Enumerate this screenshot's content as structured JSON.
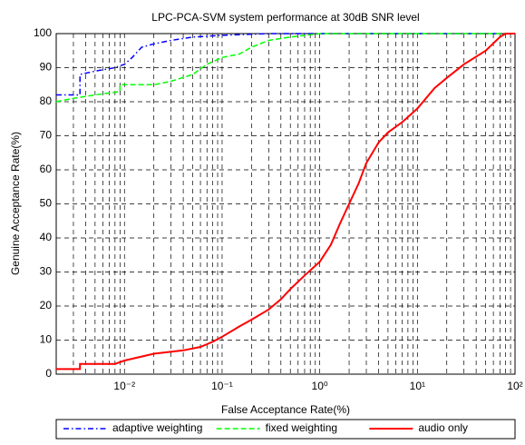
{
  "chart_data": {
    "type": "line",
    "title": "LPC-PCA-SVM system performance at 30dB SNR level",
    "xlabel": "False Acceptance Rate(%)",
    "ylabel": "Genuine Acceptance Rate(%)",
    "xscale": "log",
    "xlim": [
      0.002,
      100
    ],
    "xticks": [
      {
        "value": 0.01,
        "label": "10⁻²"
      },
      {
        "value": 0.1,
        "label": "10⁻¹"
      },
      {
        "value": 1,
        "label": "10⁰"
      },
      {
        "value": 10,
        "label": "10¹"
      },
      {
        "value": 100,
        "label": "10²"
      }
    ],
    "xminor": [
      0.002,
      0.003,
      0.004,
      0.005,
      0.006,
      0.007,
      0.008,
      0.009,
      0.02,
      0.03,
      0.04,
      0.05,
      0.06,
      0.07,
      0.08,
      0.09,
      0.2,
      0.3,
      0.4,
      0.5,
      0.6,
      0.7,
      0.8,
      0.9,
      2,
      3,
      4,
      5,
      6,
      7,
      8,
      9,
      20,
      30,
      40,
      50,
      60,
      70,
      80,
      90
    ],
    "ylim": [
      0,
      100
    ],
    "yticks": [
      0,
      10,
      20,
      30,
      40,
      50,
      60,
      70,
      80,
      90,
      100
    ],
    "grid": true,
    "legend": "bottom",
    "series": [
      {
        "name": "adaptive weighting",
        "color": "#0000ff",
        "dash": "dashdot",
        "x": [
          0.002,
          0.0035,
          0.0035,
          0.005,
          0.008,
          0.01,
          0.012,
          0.015,
          0.02,
          0.03,
          0.05,
          0.1,
          0.3,
          100
        ],
        "values": [
          82,
          82,
          88,
          89,
          90,
          91,
          93,
          96,
          97,
          98,
          99,
          99.5,
          100,
          100
        ]
      },
      {
        "name": "fixed weighting",
        "color": "#00ff00",
        "dash": "dashed",
        "x": [
          0.002,
          0.003,
          0.005,
          0.009,
          0.009,
          0.02,
          0.03,
          0.05,
          0.07,
          0.1,
          0.15,
          0.2,
          0.3,
          0.5,
          1,
          100
        ],
        "values": [
          80,
          81,
          82,
          83,
          85,
          85,
          86,
          88,
          91,
          93,
          94,
          96,
          98,
          99,
          100,
          100
        ]
      },
      {
        "name": "audio only",
        "color": "#ff0000",
        "dash": "solid",
        "x": [
          0.002,
          0.0035,
          0.0035,
          0.008,
          0.01,
          0.02,
          0.04,
          0.06,
          0.08,
          0.1,
          0.15,
          0.2,
          0.3,
          0.4,
          0.5,
          0.7,
          1,
          1.3,
          1.6,
          2,
          2.5,
          3,
          4,
          5,
          7,
          10,
          15,
          20,
          30,
          50,
          70,
          80,
          100
        ],
        "values": [
          1.5,
          1.5,
          3,
          3,
          4,
          6,
          7,
          8,
          9.5,
          11,
          14,
          16,
          19,
          22,
          25,
          29,
          33,
          38,
          44,
          50,
          56,
          62,
          68,
          71,
          74,
          78,
          84,
          87,
          91,
          95,
          99,
          100,
          100
        ]
      }
    ]
  }
}
